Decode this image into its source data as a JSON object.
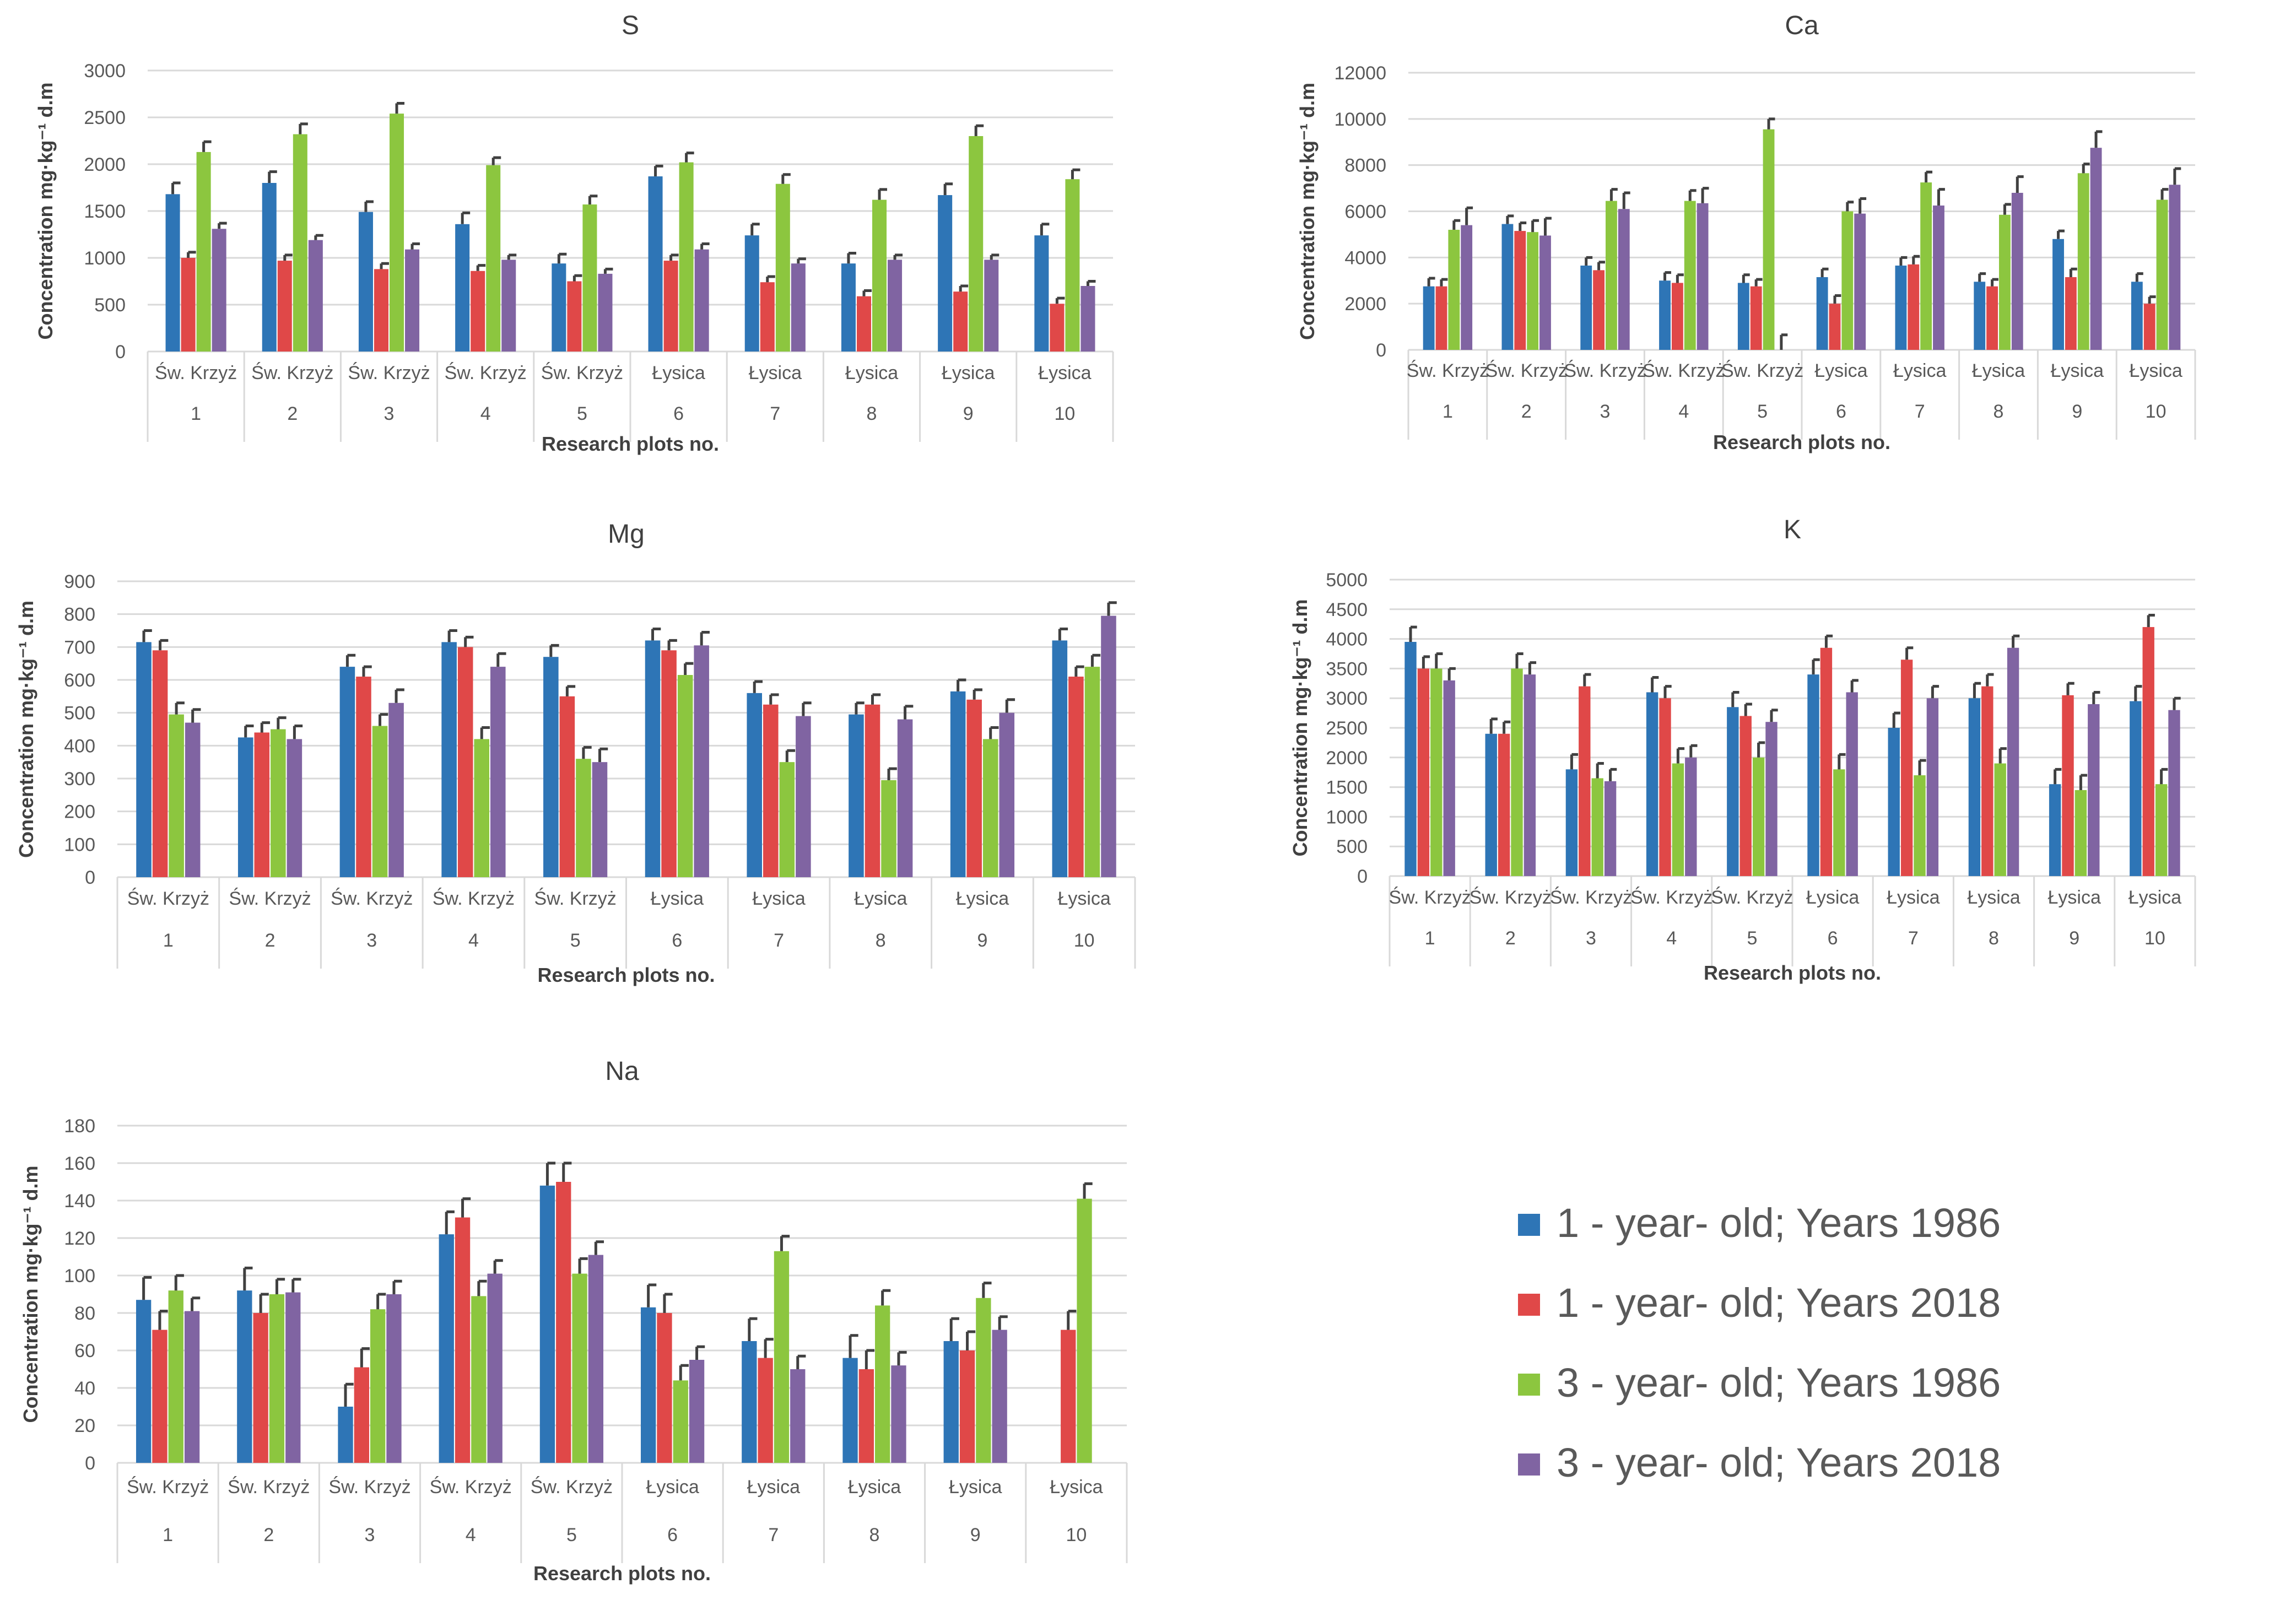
{
  "figure": {
    "xlabel": "Research plots no.",
    "ylabel": "Concentration mg·kg⁻¹ d.m"
  },
  "legend": [
    {
      "label": "1 - year- old; Years 1986",
      "color": "#2e75b6"
    },
    {
      "label": "1 - year- old; Years 2018",
      "color": "#e04848"
    },
    {
      "label": "3 - year- old; Years 1986",
      "color": "#8cc63f"
    },
    {
      "label": "3 - year- old; Years 2018",
      "color": "#8064a2"
    }
  ],
  "chart_data": [
    {
      "type": "bar",
      "title": "S",
      "xlabel": "Research plots no.",
      "ylabel": "Concentration mg·kg⁻¹ d.m",
      "ylim": [
        0,
        3000
      ],
      "yticks": [
        0,
        500,
        1000,
        1500,
        2000,
        2500,
        3000
      ],
      "categories": [
        "1",
        "2",
        "3",
        "4",
        "5",
        "6",
        "7",
        "8",
        "9",
        "10"
      ],
      "category_groups": [
        "Św. Krzyż",
        "Św. Krzyż",
        "Św. Krzyż",
        "Św. Krzyż",
        "Św. Krzyż",
        "Łysica",
        "Łysica",
        "Łysica",
        "Łysica",
        "Łysica"
      ],
      "series": [
        {
          "name": "1 - year- old; Years 1986",
          "values": [
            1680,
            1800,
            1490,
            1360,
            940,
            1870,
            1240,
            940,
            1670,
            1240
          ],
          "errors": [
            120,
            120,
            110,
            120,
            100,
            110,
            120,
            110,
            120,
            120
          ]
        },
        {
          "name": "1 - year- old; Years 2018",
          "values": [
            1000,
            970,
            880,
            860,
            750,
            970,
            740,
            590,
            640,
            510
          ],
          "errors": [
            60,
            60,
            60,
            60,
            60,
            60,
            60,
            60,
            60,
            60
          ]
        },
        {
          "name": "3 - year- old; Years 1986",
          "values": [
            2130,
            2320,
            2540,
            1990,
            1570,
            2020,
            1790,
            1620,
            2300,
            1840
          ],
          "errors": [
            110,
            110,
            110,
            80,
            90,
            100,
            100,
            110,
            110,
            100
          ]
        },
        {
          "name": "3 - year- old; Years 2018",
          "values": [
            1310,
            1190,
            1090,
            980,
            830,
            1090,
            940,
            980,
            980,
            700
          ],
          "errors": [
            60,
            50,
            60,
            50,
            50,
            60,
            50,
            50,
            50,
            50
          ]
        }
      ]
    },
    {
      "type": "bar",
      "title": "Ca",
      "xlabel": "Research plots no.",
      "ylabel": "Concentration mg·kg⁻¹ d.m",
      "ylim": [
        0,
        12000
      ],
      "yticks": [
        0,
        2000,
        4000,
        6000,
        8000,
        10000,
        12000
      ],
      "categories": [
        "1",
        "2",
        "3",
        "4",
        "5",
        "6",
        "7",
        "8",
        "9",
        "10"
      ],
      "category_groups": [
        "Św. Krzyż",
        "Św. Krzyż",
        "Św. Krzyż",
        "Św. Krzyż",
        "Św. Krzyż",
        "Łysica",
        "Łysica",
        "Łysica",
        "Łysica",
        "Łysica"
      ],
      "series": [
        {
          "name": "1 - year- old; Years 1986",
          "values": [
            2750,
            5450,
            3650,
            3000,
            2900,
            3150,
            3650,
            2950,
            4800,
            2950
          ],
          "errors": [
            350,
            350,
            350,
            350,
            350,
            350,
            350,
            350,
            350,
            350
          ]
        },
        {
          "name": "1 - year- old; Years 2018",
          "values": [
            2750,
            5150,
            3450,
            2900,
            2750,
            2000,
            3700,
            2750,
            3150,
            2000
          ],
          "errors": [
            300,
            350,
            350,
            350,
            300,
            350,
            350,
            300,
            350,
            300
          ]
        },
        {
          "name": "3 - year- old; Years 1986",
          "values": [
            5200,
            5100,
            6450,
            6450,
            9550,
            6000,
            7250,
            5850,
            7650,
            6500
          ],
          "errors": [
            400,
            500,
            500,
            450,
            450,
            400,
            450,
            450,
            400,
            450
          ]
        },
        {
          "name": "3 - year- old; Years 2018",
          "values": [
            5400,
            4950,
            6100,
            6350,
            0,
            5900,
            6250,
            6800,
            8750,
            7150
          ],
          "errors": [
            750,
            750,
            700,
            650,
            650,
            650,
            700,
            700,
            700,
            700
          ]
        }
      ]
    },
    {
      "type": "bar",
      "title": "Mg",
      "xlabel": "Research plots no.",
      "ylabel": "Concentration mg·kg⁻¹ d.m",
      "ylim": [
        0,
        900
      ],
      "yticks": [
        0,
        100,
        200,
        300,
        400,
        500,
        600,
        700,
        800,
        900
      ],
      "categories": [
        "1",
        "2",
        "3",
        "4",
        "5",
        "6",
        "7",
        "8",
        "9",
        "10"
      ],
      "category_groups": [
        "Św. Krzyż",
        "Św. Krzyż",
        "Św. Krzyż",
        "Św. Krzyż",
        "Św. Krzyż",
        "Łysica",
        "Łysica",
        "Łysica",
        "Łysica",
        "Łysica"
      ],
      "series": [
        {
          "name": "1 - year- old; Years 1986",
          "values": [
            715,
            425,
            640,
            715,
            670,
            720,
            560,
            495,
            565,
            720
          ],
          "errors": [
            35,
            35,
            35,
            35,
            35,
            35,
            35,
            35,
            35,
            35
          ]
        },
        {
          "name": "1 - year- old; Years 2018",
          "values": [
            690,
            440,
            610,
            700,
            550,
            690,
            525,
            525,
            540,
            610
          ],
          "errors": [
            30,
            30,
            30,
            30,
            30,
            30,
            30,
            30,
            30,
            30
          ]
        },
        {
          "name": "3 - year- old; Years 1986",
          "values": [
            495,
            450,
            460,
            420,
            360,
            615,
            350,
            295,
            420,
            640
          ],
          "errors": [
            35,
            35,
            35,
            35,
            35,
            35,
            35,
            35,
            35,
            35
          ]
        },
        {
          "name": "3 - year- old; Years 2018",
          "values": [
            470,
            420,
            530,
            640,
            350,
            705,
            490,
            480,
            500,
            795
          ],
          "errors": [
            40,
            40,
            40,
            40,
            40,
            40,
            40,
            40,
            40,
            40
          ]
        }
      ]
    },
    {
      "type": "bar",
      "title": "K",
      "xlabel": "Research plots no.",
      "ylabel": "Concentration mg·kg⁻¹ d.m",
      "ylim": [
        0,
        5000
      ],
      "yticks": [
        0,
        500,
        1000,
        1500,
        2000,
        2500,
        3000,
        3500,
        4000,
        4500,
        5000
      ],
      "categories": [
        "1",
        "2",
        "3",
        "4",
        "5",
        "6",
        "7",
        "8",
        "9",
        "10"
      ],
      "category_groups": [
        "Św. Krzyż",
        "Św. Krzyż",
        "Św. Krzyż",
        "Św. Krzyż",
        "Św. Krzyż",
        "Łysica",
        "Łysica",
        "Łysica",
        "Łysica",
        "Łysica"
      ],
      "series": [
        {
          "name": "1 - year- old; Years 1986",
          "values": [
            3950,
            2400,
            1800,
            3100,
            2850,
            3400,
            2500,
            3000,
            1550,
            2950
          ],
          "errors": [
            250,
            250,
            250,
            250,
            250,
            250,
            250,
            250,
            250,
            250
          ]
        },
        {
          "name": "1 - year- old; Years 2018",
          "values": [
            3500,
            2400,
            3200,
            3000,
            2700,
            3850,
            3650,
            3200,
            3050,
            4200
          ],
          "errors": [
            200,
            200,
            200,
            200,
            200,
            200,
            200,
            200,
            200,
            200
          ]
        },
        {
          "name": "3 - year- old; Years 1986",
          "values": [
            3500,
            3500,
            1650,
            1900,
            2000,
            1800,
            1700,
            1900,
            1450,
            1550
          ],
          "errors": [
            250,
            250,
            250,
            250,
            250,
            250,
            250,
            250,
            250,
            250
          ]
        },
        {
          "name": "3 - year- old; Years 2018",
          "values": [
            3300,
            3400,
            1600,
            2000,
            2600,
            3100,
            3000,
            3850,
            2900,
            2800
          ],
          "errors": [
            200,
            200,
            200,
            200,
            200,
            200,
            200,
            200,
            200,
            200
          ]
        }
      ]
    },
    {
      "type": "bar",
      "title": "Na",
      "xlabel": "Research plots no.",
      "ylabel": "Concentration mg·kg⁻¹ d.m",
      "ylim": [
        0,
        180
      ],
      "yticks": [
        0,
        20,
        40,
        60,
        80,
        100,
        120,
        140,
        160,
        180
      ],
      "categories": [
        "1",
        "2",
        "3",
        "4",
        "5",
        "6",
        "7",
        "8",
        "9",
        "10"
      ],
      "category_groups": [
        "Św. Krzyż",
        "Św. Krzyż",
        "Św. Krzyż",
        "Św. Krzyż",
        "Św. Krzyż",
        "Łysica",
        "Łysica",
        "Łysica",
        "Łysica",
        "Łysica"
      ],
      "series": [
        {
          "name": "1 - year- old; Years 1986",
          "values": [
            87,
            92,
            30,
            122,
            148,
            83,
            65,
            56,
            65,
            0
          ],
          "errors": [
            12,
            12,
            12,
            12,
            12,
            12,
            12,
            12,
            12,
            0
          ]
        },
        {
          "name": "1 - year- old; Years 2018",
          "values": [
            71,
            80,
            51,
            131,
            150,
            80,
            56,
            50,
            60,
            71
          ],
          "errors": [
            10,
            10,
            10,
            10,
            10,
            10,
            10,
            10,
            10,
            10
          ]
        },
        {
          "name": "3 - year- old; Years 1986",
          "values": [
            92,
            90,
            82,
            89,
            101,
            44,
            113,
            84,
            88,
            141
          ],
          "errors": [
            8,
            8,
            8,
            8,
            8,
            8,
            8,
            8,
            8,
            8
          ]
        },
        {
          "name": "3 - year- old; Years 2018",
          "values": [
            81,
            91,
            90,
            101,
            111,
            55,
            50,
            52,
            71,
            0
          ],
          "errors": [
            7,
            7,
            7,
            7,
            7,
            7,
            7,
            7,
            7,
            0
          ]
        }
      ]
    }
  ]
}
